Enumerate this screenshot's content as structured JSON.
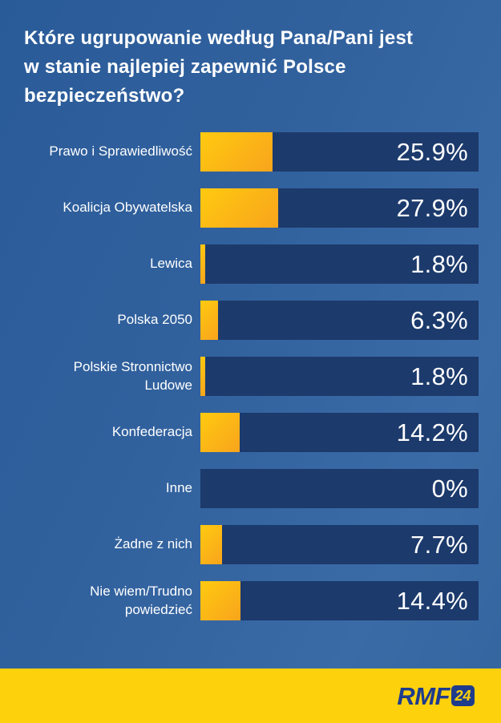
{
  "title": "Które ugrupowanie według Pana/Pani jest w stanie najlepiej zapewnić Polsce bezpieczeństwo?",
  "chart_data": {
    "type": "bar",
    "orientation": "horizontal",
    "title": "Które ugrupowanie według Pana/Pani jest w stanie najlepiej zapewnić Polsce bezpieczeństwo?",
    "categories": [
      "Prawo i Sprawiedliwość",
      "Koalicja Obywatelska",
      "Lewica",
      "Polska 2050",
      "Polskie Stronnictwo Ludowe",
      "Konfederacja",
      "Inne",
      "Żadne z nich",
      "Nie wiem/Trudno powiedzieć"
    ],
    "values": [
      25.9,
      27.9,
      1.8,
      6.3,
      1.8,
      14.2,
      0,
      7.7,
      14.4
    ],
    "value_labels": [
      "25.9%",
      "27.9%",
      "1.8%",
      "6.3%",
      "1.8%",
      "14.2%",
      "0%",
      "7.7%",
      "14.4%"
    ],
    "axis_range": [
      0,
      100
    ],
    "grid": false,
    "legend": "none"
  },
  "footer": {
    "logo_text": "RMF",
    "logo_badge": "24"
  },
  "colors": {
    "background_start": "#2a5b99",
    "background_end": "#3b6ba6",
    "bar_track": "#1c3a6c",
    "bar_fill_start": "#ffca10",
    "bar_fill_end": "#f8a41c",
    "footer_band": "#fdd10c",
    "logo_navy": "#1f3c8c",
    "text": "#ffffff"
  }
}
